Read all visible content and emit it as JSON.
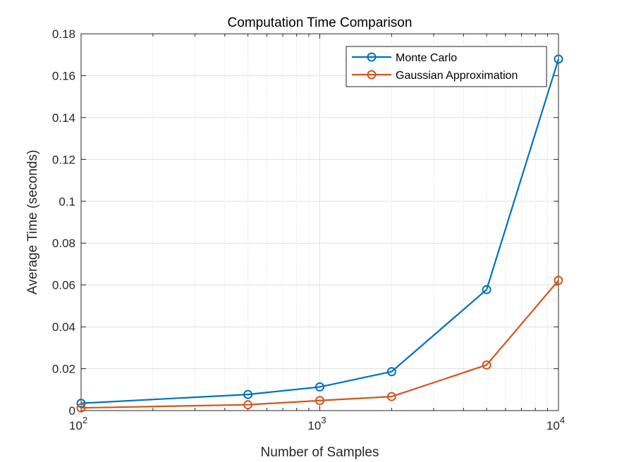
{
  "chart_data": {
    "type": "line",
    "title": "Computation Time Comparison",
    "xlabel": "Number of Samples",
    "ylabel": "Average Time (seconds)",
    "xscale": "log",
    "xlim": [
      100,
      10000
    ],
    "ylim": [
      0,
      0.18
    ],
    "x": [
      100,
      500,
      1000,
      2000,
      5000,
      10000
    ],
    "x_ticks": [
      {
        "value": 100,
        "base": "10",
        "exp": "2"
      },
      {
        "value": 1000,
        "base": "10",
        "exp": "3"
      },
      {
        "value": 10000,
        "base": "10",
        "exp": "4"
      }
    ],
    "y_ticks": [
      "0",
      "0.02",
      "0.04",
      "0.06",
      "0.08",
      "0.1",
      "0.12",
      "0.14",
      "0.16",
      "0.18"
    ],
    "grid": true,
    "minor_grid_x": true,
    "legend_position": "top-right",
    "series": [
      {
        "name": "Monte Carlo",
        "color": "#0072BD",
        "marker": "circle",
        "values": [
          0.0035,
          0.0077,
          0.0113,
          0.0186,
          0.0578,
          0.1679
        ]
      },
      {
        "name": "Gaussian Approximation",
        "color": "#D95319",
        "marker": "circle",
        "values": [
          0.0013,
          0.0028,
          0.0048,
          0.0067,
          0.0218,
          0.0622
        ]
      }
    ]
  }
}
